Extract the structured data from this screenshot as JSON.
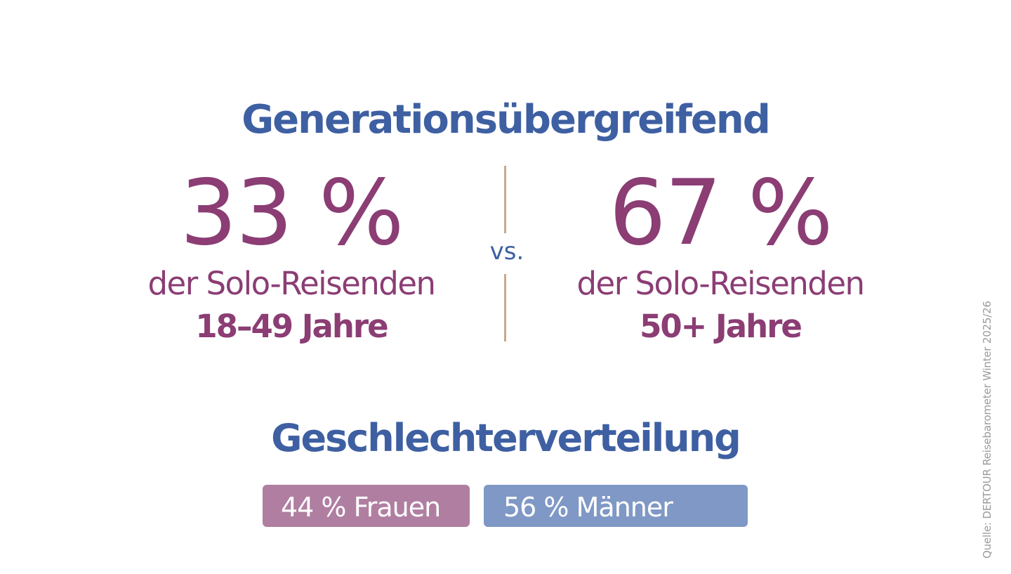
{
  "colors": {
    "heading": "#3e60a2",
    "accent": "#8b3d74",
    "divider": "#c8a98d",
    "women_bar": "#b07ea1",
    "men_bar": "#7f98c5",
    "source": "#9a9a9a"
  },
  "generation": {
    "title": "Generationsübergreifend",
    "left": {
      "percent": "33 %",
      "label": "der Solo-Reisenden",
      "age": "18–49 Jahre"
    },
    "vs": "vs.",
    "right": {
      "percent": "67 %",
      "label": "der Solo-Reisenden",
      "age": "50+ Jahre"
    }
  },
  "gender": {
    "title": "Geschlechterverteilung",
    "women": {
      "label": "44 % Frauen",
      "share": 44
    },
    "men": {
      "label": "56 % Männer",
      "share": 56
    }
  },
  "source": "Quelle: DERTOUR Reisebarometer Winter 2025/26"
}
